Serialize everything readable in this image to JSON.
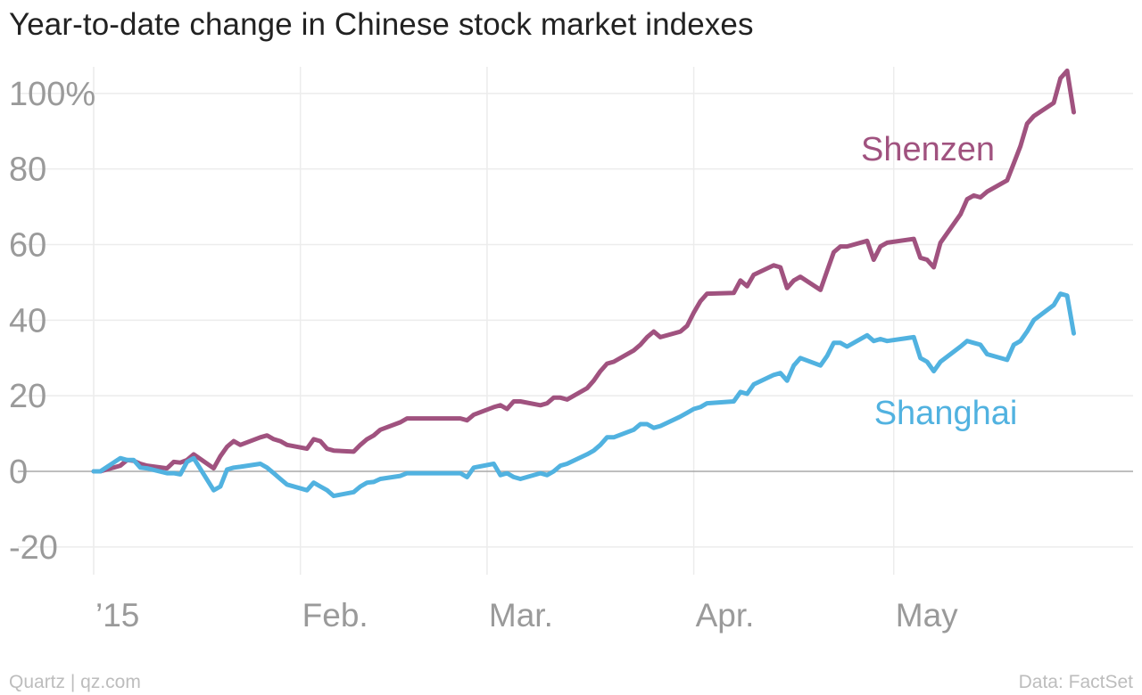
{
  "chart_data": {
    "type": "line",
    "title": "Year-to-date change in Chinese stock market indexes",
    "xlabel": "",
    "ylabel": "",
    "ylim": [
      -28,
      108
    ],
    "xlim": [
      "2015-01-01",
      "2015-05-29"
    ],
    "y_ticks": [
      {
        "value": 100,
        "label": "100%"
      },
      {
        "value": 80,
        "label": "80"
      },
      {
        "value": 60,
        "label": "60"
      },
      {
        "value": 40,
        "label": "40"
      },
      {
        "value": 20,
        "label": "20"
      },
      {
        "value": 0,
        "label": "0"
      },
      {
        "value": -20,
        "label": "-20"
      }
    ],
    "x_ticks": [
      {
        "date": "2015-01-01",
        "label": "’15"
      },
      {
        "date": "2015-02-01",
        "label": "Feb."
      },
      {
        "date": "2015-03-01",
        "label": "Mar."
      },
      {
        "date": "2015-04-01",
        "label": "Apr."
      },
      {
        "date": "2015-05-01",
        "label": "May"
      }
    ],
    "grid": true,
    "legend": "direct labels",
    "series": [
      {
        "name": "Shenzen",
        "color": "#a0527f",
        "points": [
          [
            "2015-01-01",
            0
          ],
          [
            "2015-01-02",
            0
          ],
          [
            "2015-01-05",
            1.5
          ],
          [
            "2015-01-06",
            3
          ],
          [
            "2015-01-07",
            2.8
          ],
          [
            "2015-01-08",
            2
          ],
          [
            "2015-01-09",
            1.5
          ],
          [
            "2015-01-12",
            0.8
          ],
          [
            "2015-01-13",
            2.5
          ],
          [
            "2015-01-14",
            2.3
          ],
          [
            "2015-01-15",
            3
          ],
          [
            "2015-01-16",
            4.5
          ],
          [
            "2015-01-19",
            0.8
          ],
          [
            "2015-01-20",
            4
          ],
          [
            "2015-01-21",
            6.5
          ],
          [
            "2015-01-22",
            8
          ],
          [
            "2015-01-23",
            7
          ],
          [
            "2015-01-26",
            9
          ],
          [
            "2015-01-27",
            9.5
          ],
          [
            "2015-01-28",
            8.5
          ],
          [
            "2015-01-29",
            8
          ],
          [
            "2015-01-30",
            7
          ],
          [
            "2015-02-02",
            6
          ],
          [
            "2015-02-03",
            8.5
          ],
          [
            "2015-02-04",
            8
          ],
          [
            "2015-02-05",
            6
          ],
          [
            "2015-02-06",
            5.5
          ],
          [
            "2015-02-09",
            5.2
          ],
          [
            "2015-02-10",
            7
          ],
          [
            "2015-02-11",
            8.5
          ],
          [
            "2015-02-12",
            9.5
          ],
          [
            "2015-02-13",
            11
          ],
          [
            "2015-02-16",
            13
          ],
          [
            "2015-02-17",
            14
          ],
          [
            "2015-02-25",
            14
          ],
          [
            "2015-02-26",
            13.5
          ],
          [
            "2015-02-27",
            15
          ],
          [
            "2015-03-02",
            17
          ],
          [
            "2015-03-03",
            17.5
          ],
          [
            "2015-03-04",
            16.5
          ],
          [
            "2015-03-05",
            18.5
          ],
          [
            "2015-03-06",
            18.5
          ],
          [
            "2015-03-09",
            17.5
          ],
          [
            "2015-03-10",
            18
          ],
          [
            "2015-03-11",
            19.5
          ],
          [
            "2015-03-12",
            19.5
          ],
          [
            "2015-03-13",
            19
          ],
          [
            "2015-03-16",
            22
          ],
          [
            "2015-03-17",
            24
          ],
          [
            "2015-03-18",
            26.5
          ],
          [
            "2015-03-19",
            28.5
          ],
          [
            "2015-03-20",
            29
          ],
          [
            "2015-03-23",
            32
          ],
          [
            "2015-03-24",
            33.5
          ],
          [
            "2015-03-25",
            35.5
          ],
          [
            "2015-03-26",
            37
          ],
          [
            "2015-03-27",
            35.5
          ],
          [
            "2015-03-30",
            37
          ],
          [
            "2015-03-31",
            38.5
          ],
          [
            "2015-04-01",
            42
          ],
          [
            "2015-04-02",
            45
          ],
          [
            "2015-04-03",
            47
          ],
          [
            "2015-04-07",
            47.2
          ],
          [
            "2015-04-08",
            50.5
          ],
          [
            "2015-04-09",
            49
          ],
          [
            "2015-04-10",
            52
          ],
          [
            "2015-04-13",
            54.5
          ],
          [
            "2015-04-14",
            54
          ],
          [
            "2015-04-15",
            48.5
          ],
          [
            "2015-04-16",
            50.5
          ],
          [
            "2015-04-17",
            51.5
          ],
          [
            "2015-04-20",
            48
          ],
          [
            "2015-04-21",
            53
          ],
          [
            "2015-04-22",
            58
          ],
          [
            "2015-04-23",
            59.5
          ],
          [
            "2015-04-24",
            59.5
          ],
          [
            "2015-04-27",
            61
          ],
          [
            "2015-04-28",
            56
          ],
          [
            "2015-04-29",
            59.5
          ],
          [
            "2015-04-30",
            60.5
          ],
          [
            "2015-05-04",
            61.5
          ],
          [
            "2015-05-05",
            56.5
          ],
          [
            "2015-05-06",
            56
          ],
          [
            "2015-05-07",
            54
          ],
          [
            "2015-05-08",
            60.5
          ],
          [
            "2015-05-11",
            68
          ],
          [
            "2015-05-12",
            72
          ],
          [
            "2015-05-13",
            73
          ],
          [
            "2015-05-14",
            72.5
          ],
          [
            "2015-05-15",
            74
          ],
          [
            "2015-05-18",
            77
          ],
          [
            "2015-05-19",
            81.5
          ],
          [
            "2015-05-20",
            86
          ],
          [
            "2015-05-21",
            92
          ],
          [
            "2015-05-22",
            94
          ],
          [
            "2015-05-25",
            97.5
          ],
          [
            "2015-05-26",
            104
          ],
          [
            "2015-05-27",
            106
          ],
          [
            "2015-05-28",
            95
          ]
        ]
      },
      {
        "name": "Shanghai",
        "color": "#51b2e0",
        "points": [
          [
            "2015-01-01",
            0
          ],
          [
            "2015-01-02",
            0
          ],
          [
            "2015-01-05",
            3.5
          ],
          [
            "2015-01-06",
            3
          ],
          [
            "2015-01-07",
            3
          ],
          [
            "2015-01-08",
            1
          ],
          [
            "2015-01-09",
            0.8
          ],
          [
            "2015-01-12",
            -0.5
          ],
          [
            "2015-01-13",
            -0.5
          ],
          [
            "2015-01-14",
            -0.8
          ],
          [
            "2015-01-15",
            2.5
          ],
          [
            "2015-01-16",
            3.5
          ],
          [
            "2015-01-19",
            -5
          ],
          [
            "2015-01-20",
            -4
          ],
          [
            "2015-01-21",
            0.5
          ],
          [
            "2015-01-22",
            1
          ],
          [
            "2015-01-23",
            1.2
          ],
          [
            "2015-01-26",
            2
          ],
          [
            "2015-01-27",
            1
          ],
          [
            "2015-01-28",
            -0.5
          ],
          [
            "2015-01-29",
            -2
          ],
          [
            "2015-01-30",
            -3.5
          ],
          [
            "2015-02-02",
            -5
          ],
          [
            "2015-02-03",
            -3
          ],
          [
            "2015-02-04",
            -4
          ],
          [
            "2015-02-05",
            -5
          ],
          [
            "2015-02-06",
            -6.5
          ],
          [
            "2015-02-09",
            -5.5
          ],
          [
            "2015-02-10",
            -4
          ],
          [
            "2015-02-11",
            -3
          ],
          [
            "2015-02-12",
            -2.8
          ],
          [
            "2015-02-13",
            -2
          ],
          [
            "2015-02-16",
            -1.2
          ],
          [
            "2015-02-17",
            -0.5
          ],
          [
            "2015-02-25",
            -0.5
          ],
          [
            "2015-02-26",
            -1.5
          ],
          [
            "2015-02-27",
            1
          ],
          [
            "2015-03-02",
            2
          ],
          [
            "2015-03-03",
            -1
          ],
          [
            "2015-03-04",
            -0.5
          ],
          [
            "2015-03-05",
            -1.5
          ],
          [
            "2015-03-06",
            -2
          ],
          [
            "2015-03-09",
            -0.5
          ],
          [
            "2015-03-10",
            -1
          ],
          [
            "2015-03-11",
            0
          ],
          [
            "2015-03-12",
            1.5
          ],
          [
            "2015-03-13",
            2
          ],
          [
            "2015-03-16",
            4.5
          ],
          [
            "2015-03-17",
            5.5
          ],
          [
            "2015-03-18",
            7
          ],
          [
            "2015-03-19",
            9
          ],
          [
            "2015-03-20",
            9
          ],
          [
            "2015-03-23",
            11
          ],
          [
            "2015-03-24",
            12.5
          ],
          [
            "2015-03-25",
            12.5
          ],
          [
            "2015-03-26",
            11.5
          ],
          [
            "2015-03-27",
            12
          ],
          [
            "2015-03-30",
            14.5
          ],
          [
            "2015-03-31",
            15.5
          ],
          [
            "2015-04-01",
            16.5
          ],
          [
            "2015-04-02",
            17
          ],
          [
            "2015-04-03",
            18
          ],
          [
            "2015-04-07",
            18.5
          ],
          [
            "2015-04-08",
            21
          ],
          [
            "2015-04-09",
            20.5
          ],
          [
            "2015-04-10",
            23
          ],
          [
            "2015-04-13",
            25.5
          ],
          [
            "2015-04-14",
            26
          ],
          [
            "2015-04-15",
            24
          ],
          [
            "2015-04-16",
            28
          ],
          [
            "2015-04-17",
            30
          ],
          [
            "2015-04-20",
            28
          ],
          [
            "2015-04-21",
            30.5
          ],
          [
            "2015-04-22",
            34
          ],
          [
            "2015-04-23",
            34
          ],
          [
            "2015-04-24",
            33
          ],
          [
            "2015-04-27",
            36
          ],
          [
            "2015-04-28",
            34.5
          ],
          [
            "2015-04-29",
            35
          ],
          [
            "2015-04-30",
            34.5
          ],
          [
            "2015-05-04",
            35.5
          ],
          [
            "2015-05-05",
            30
          ],
          [
            "2015-05-06",
            29
          ],
          [
            "2015-05-07",
            26.5
          ],
          [
            "2015-05-08",
            29
          ],
          [
            "2015-05-11",
            33
          ],
          [
            "2015-05-12",
            34.5
          ],
          [
            "2015-05-13",
            34
          ],
          [
            "2015-05-14",
            33.5
          ],
          [
            "2015-05-15",
            31
          ],
          [
            "2015-05-18",
            29.5
          ],
          [
            "2015-05-19",
            33.5
          ],
          [
            "2015-05-20",
            34.5
          ],
          [
            "2015-05-21",
            37
          ],
          [
            "2015-05-22",
            40
          ],
          [
            "2015-05-25",
            44
          ],
          [
            "2015-05-26",
            47
          ],
          [
            "2015-05-27",
            46.5
          ],
          [
            "2015-05-28",
            36.5
          ]
        ]
      }
    ]
  },
  "source": {
    "left": "Quartz | qz.com",
    "right": "Data: FactSet"
  }
}
